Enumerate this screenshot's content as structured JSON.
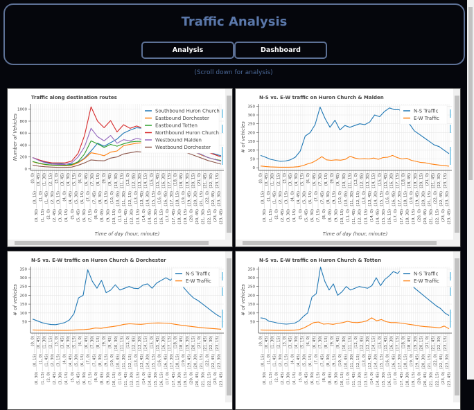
{
  "header": {
    "title": "Traffic Analysis",
    "buttons": [
      "Analysis",
      "Dashboard"
    ]
  },
  "hint": "(Scroll down for analysis)",
  "colors": {
    "accent": "#5b78ab",
    "border": "#5d7196",
    "background": "#05060c",
    "toolbar_marker": "#4fb3e0"
  },
  "time_ticks": [
    "(0, 0)",
    "(0, 15)",
    "(0, 30)",
    "(0, 45)",
    "(1, 0)",
    "(1, 15)",
    "(1, 30)",
    "(1, 45)",
    "(2, 0)",
    "(2, 15)",
    "(2, 30)",
    "(2, 45)",
    "(3, 0)",
    "(3, 15)",
    "(3, 30)",
    "(3, 45)",
    "(4, 0)",
    "(4, 15)",
    "(4, 30)",
    "(4, 45)",
    "(5, 0)",
    "(5, 15)",
    "(5, 30)",
    "(5, 45)",
    "(6, 0)",
    "(6, 15)",
    "(6, 30)",
    "(6, 45)",
    "(7, 0)",
    "(7, 15)",
    "(7, 30)",
    "(7, 45)",
    "(8, 0)",
    "(8, 15)",
    "(8, 30)",
    "(8, 45)",
    "(9, 0)",
    "(9, 15)",
    "(9, 30)",
    "(9, 45)",
    "(10, 0)",
    "(10, 15)",
    "(10, 30)",
    "(10, 45)",
    "(11, 0)",
    "(11, 15)",
    "(11, 30)",
    "(11, 45)",
    "(12, 0)",
    "(12, 15)",
    "(12, 30)",
    "(12, 45)",
    "(13, 0)",
    "(13, 15)",
    "(13, 30)",
    "(13, 45)",
    "(14, 0)",
    "(14, 15)",
    "(14, 30)",
    "(14, 45)",
    "(15, 0)",
    "(15, 15)",
    "(15, 30)",
    "(15, 45)",
    "(16, 0)",
    "(16, 15)",
    "(16, 30)",
    "(16, 45)",
    "(17, 0)",
    "(17, 15)",
    "(17, 30)",
    "(17, 45)",
    "(18, 0)",
    "(18, 15)",
    "(18, 30)",
    "(18, 45)",
    "(19, 0)",
    "(19, 15)",
    "(19, 30)",
    "(19, 45)",
    "(20, 0)",
    "(20, 15)",
    "(20, 30)",
    "(20, 45)",
    "(21, 0)",
    "(21, 15)",
    "(21, 30)",
    "(21, 45)",
    "(22, 0)",
    "(22, 15)",
    "(22, 30)",
    "(22, 45)",
    "(23, 0)",
    "(23, 15)",
    "(23, 30)",
    "(23, 45)"
  ],
  "chart_data": [
    {
      "type": "line",
      "title": "Traffic along destination routes",
      "xlabel": "Time of day (hour, minute)",
      "ylabel": "Number of Vehicles",
      "ylim": [
        -25,
        1090
      ],
      "yticks": [
        0,
        200,
        400,
        600,
        800,
        1000
      ],
      "grid": true,
      "legend": "top-right",
      "series": [
        {
          "name": "Southbound Huron Church",
          "color": "#1f77b4",
          "values": [
            190,
            150,
            110,
            95,
            90,
            80,
            80,
            110,
            180,
            300,
            430,
            380,
            440,
            500,
            600,
            650,
            690,
            680,
            700,
            650,
            620,
            600,
            580,
            520,
            460,
            400,
            360,
            300,
            250,
            220
          ]
        },
        {
          "name": "Eastbound Dorchester",
          "color": "#ff7f0e",
          "values": [
            120,
            90,
            70,
            60,
            55,
            50,
            60,
            100,
            170,
            270,
            250,
            220,
            280,
            300,
            390,
            410,
            430,
            440,
            500,
            560,
            540,
            480,
            420,
            380,
            320,
            280,
            230,
            190,
            160,
            140
          ]
        },
        {
          "name": "Eastbound Totten",
          "color": "#2ca02c",
          "values": [
            125,
            95,
            75,
            65,
            60,
            60,
            70,
            120,
            250,
            470,
            420,
            360,
            410,
            380,
            420,
            450,
            460,
            460,
            560,
            600,
            560,
            500,
            400,
            360,
            320,
            280,
            240,
            190,
            160,
            140
          ]
        },
        {
          "name": "Northbound Huron Church",
          "color": "#d62728",
          "values": [
            190,
            150,
            120,
            100,
            100,
            100,
            130,
            260,
            560,
            1040,
            800,
            690,
            810,
            620,
            740,
            680,
            720,
            680,
            700,
            650,
            620,
            620,
            600,
            520,
            460,
            400,
            340,
            280,
            240,
            200
          ]
        },
        {
          "name": "Westbound Malden",
          "color": "#9467bd",
          "values": [
            190,
            140,
            100,
            80,
            75,
            75,
            100,
            200,
            370,
            680,
            540,
            470,
            560,
            430,
            490,
            470,
            510,
            490,
            530,
            520,
            500,
            500,
            460,
            380,
            320,
            280,
            240,
            190,
            160,
            130
          ]
        },
        {
          "name": "Westbound Dorchester",
          "color": "#8c564b",
          "values": [
            65,
            45,
            35,
            30,
            25,
            25,
            30,
            60,
            100,
            150,
            140,
            135,
            180,
            200,
            250,
            270,
            290,
            280,
            340,
            350,
            370,
            380,
            370,
            300,
            260,
            220,
            180,
            140,
            110,
            80
          ]
        }
      ]
    },
    {
      "type": "line",
      "title": "N-S vs. E-W traffic on Huron Church & Malden",
      "xlabel": "Time of day (hour, minute)",
      "ylabel": "# of vehicles",
      "ylim": [
        -15,
        363
      ],
      "yticks": [
        0,
        50,
        100,
        150,
        200,
        250,
        300,
        350
      ],
      "grid": true,
      "legend": "top-right",
      "series": [
        {
          "name": "N-S Traffic",
          "color": "#1f77b4",
          "values": [
            70,
            60,
            48,
            42,
            36,
            38,
            45,
            60,
            95,
            180,
            200,
            245,
            345,
            280,
            230,
            270,
            215,
            240,
            230,
            240,
            250,
            245,
            260,
            300,
            290,
            320,
            340,
            330,
            330,
            290,
            250,
            210,
            190,
            170,
            150,
            130,
            120,
            100,
            80
          ]
        },
        {
          "name": "E-W Traffic",
          "color": "#ff7f0e",
          "values": [
            10,
            7,
            5,
            4,
            3,
            3,
            3,
            4,
            6,
            12,
            22,
            30,
            45,
            63,
            45,
            42,
            45,
            43,
            48,
            65,
            55,
            50,
            52,
            50,
            55,
            48,
            58,
            60,
            70,
            58,
            50,
            54,
            42,
            36,
            30,
            28,
            22,
            18,
            15,
            12,
            9
          ]
        }
      ]
    },
    {
      "type": "line",
      "title": "N-S vs. E-W traffic on Huron Church & Dorchester",
      "ylabel": "# of vehicles",
      "ylim": [
        -15,
        363
      ],
      "yticks": [
        50,
        100,
        150,
        200,
        250,
        300,
        350
      ],
      "grid": true,
      "legend": "top-right",
      "series": [
        {
          "name": "N-S Traffic",
          "color": "#1f77b4",
          "values": [
            65,
            55,
            45,
            38,
            34,
            33,
            38,
            45,
            60,
            95,
            185,
            200,
            345,
            280,
            240,
            285,
            215,
            230,
            260,
            230,
            240,
            250,
            240,
            238,
            258,
            265,
            240,
            270,
            285,
            300,
            285,
            315,
            280,
            240,
            210,
            185,
            170,
            150,
            130,
            110,
            90,
            75
          ]
        },
        {
          "name": "E-W Traffic",
          "color": "#ff7f0e",
          "values": [
            3,
            2,
            2,
            1,
            1,
            1,
            1,
            2,
            4,
            5,
            8,
            14,
            12,
            18,
            22,
            27,
            35,
            38,
            36,
            35,
            38,
            42,
            43,
            42,
            40,
            35,
            30,
            26,
            22,
            18,
            15,
            12,
            10,
            7
          ]
        }
      ]
    },
    {
      "type": "line",
      "title": "N-S vs. E-W traffic on Huron Church & Totten",
      "ylabel": "# of vehicles",
      "ylim": [
        -15,
        363
      ],
      "yticks": [
        50,
        100,
        150,
        200,
        250,
        300,
        350
      ],
      "grid": true,
      "legend": "top-right",
      "series": [
        {
          "name": "N-S Traffic",
          "color": "#1f77b4",
          "values": [
            72,
            68,
            52,
            48,
            42,
            38,
            36,
            38,
            42,
            55,
            80,
            100,
            190,
            210,
            360,
            280,
            230,
            265,
            200,
            220,
            250,
            230,
            240,
            250,
            245,
            240,
            255,
            300,
            255,
            290,
            310,
            335,
            325,
            350,
            320,
            270,
            240,
            220,
            200,
            180,
            160,
            140,
            125,
            100,
            85
          ]
        },
        {
          "name": "E-W Traffic",
          "color": "#ff7f0e",
          "values": [
            3,
            2,
            2,
            1,
            1,
            1,
            1,
            2,
            5,
            15,
            30,
            45,
            48,
            36,
            38,
            35,
            40,
            45,
            52,
            46,
            45,
            48,
            55,
            72,
            55,
            62,
            50,
            45,
            45,
            42,
            38,
            34,
            30,
            25,
            22,
            20,
            18,
            15,
            25,
            10
          ]
        }
      ]
    }
  ]
}
